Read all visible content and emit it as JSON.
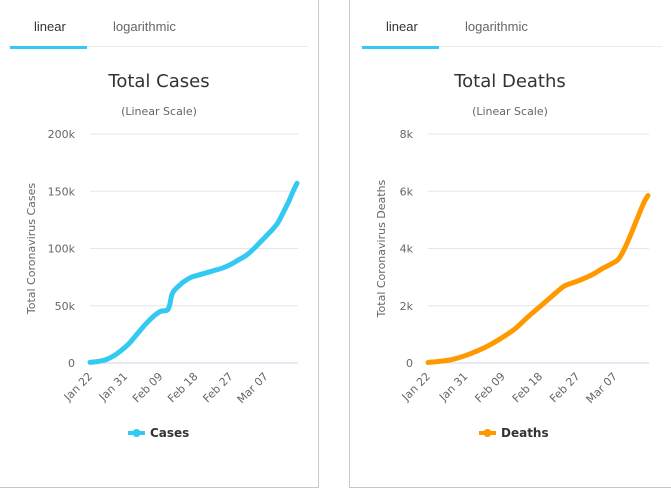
{
  "tabs": [
    {
      "items": [
        {
          "label": "linear",
          "active": true
        },
        {
          "label": "logarithmic",
          "active": false
        }
      ]
    },
    {
      "items": [
        {
          "label": "linear",
          "active": true
        },
        {
          "label": "logarithmic",
          "active": false
        }
      ]
    }
  ],
  "accent_color": "#33c9f2",
  "chart_data": [
    {
      "type": "line",
      "title": "Total Cases",
      "subtitle": "(Linear Scale)",
      "xlabel": "",
      "ylabel": "Total Coronavirus Cases",
      "ylim": [
        0,
        200000
      ],
      "yticks": [
        0,
        50000,
        100000,
        150000,
        200000
      ],
      "ytick_labels": [
        "0",
        "50k",
        "100k",
        "150k",
        "200k"
      ],
      "xtick_labels": [
        "Jan 22",
        "Jan 31",
        "Feb 09",
        "Feb 18",
        "Feb 27",
        "Mar 07"
      ],
      "xtick_days": [
        0,
        9,
        18,
        27,
        36,
        45
      ],
      "xlim_days": [
        0,
        53
      ],
      "grid": true,
      "legend": "bottom-center",
      "series": [
        {
          "name": "Cases",
          "color": "#33c9f2",
          "x_days": [
            0,
            2,
            4,
            6,
            8,
            10,
            12,
            14,
            16,
            18,
            20,
            21,
            22,
            23,
            24,
            26,
            28,
            30,
            32,
            34,
            36,
            38,
            40,
            42,
            44,
            46,
            48,
            50,
            51,
            52,
            53
          ],
          "values": [
            580,
            1300,
            2800,
            6100,
            11000,
            17000,
            25000,
            33000,
            40000,
            45000,
            47000,
            60000,
            65000,
            68000,
            71000,
            75000,
            77000,
            79000,
            81000,
            83000,
            86000,
            90000,
            94000,
            100000,
            107000,
            114000,
            122000,
            135000,
            142000,
            150000,
            157000
          ]
        }
      ]
    },
    {
      "type": "line",
      "title": "Total Deaths",
      "subtitle": "(Linear Scale)",
      "xlabel": "",
      "ylabel": "Total Coronavirus Deaths",
      "ylim": [
        0,
        8000
      ],
      "yticks": [
        0,
        2000,
        4000,
        6000,
        8000
      ],
      "ytick_labels": [
        "0",
        "2k",
        "4k",
        "6k",
        "8k"
      ],
      "xtick_labels": [
        "Jan 22",
        "Jan 31",
        "Feb 09",
        "Feb 18",
        "Feb 27",
        "Mar 07"
      ],
      "xtick_days": [
        0,
        9,
        18,
        27,
        36,
        45
      ],
      "xlim_days": [
        0,
        53
      ],
      "grid": true,
      "legend": "bottom-center",
      "series": [
        {
          "name": "Deaths",
          "color": "#ff9900",
          "x_days": [
            0,
            3,
            6,
            9,
            12,
            15,
            18,
            21,
            24,
            26,
            28,
            30,
            32,
            33,
            34,
            36,
            38,
            40,
            42,
            44,
            46,
            48,
            50,
            52,
            53
          ],
          "values": [
            17,
            60,
            130,
            260,
            430,
            640,
            900,
            1200,
            1600,
            1850,
            2100,
            2350,
            2600,
            2700,
            2760,
            2860,
            2980,
            3120,
            3300,
            3450,
            3650,
            4200,
            4900,
            5600,
            5850
          ]
        }
      ]
    }
  ]
}
